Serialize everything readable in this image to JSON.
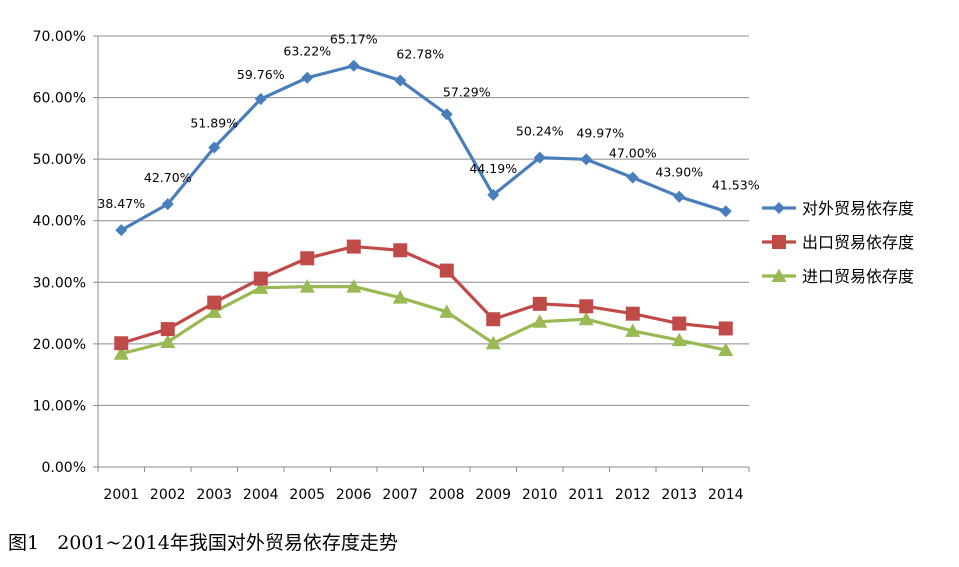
{
  "chart_data": {
    "type": "line",
    "title": "",
    "xlabel": "",
    "ylabel": "",
    "ylim": [
      0,
      70
    ],
    "yticks": [
      "0.00%",
      "10.00%",
      "20.00%",
      "30.00%",
      "40.00%",
      "50.00%",
      "60.00%",
      "70.00%"
    ],
    "categories": [
      "2001",
      "2002",
      "2003",
      "2004",
      "2005",
      "2006",
      "2007",
      "2008",
      "2009",
      "2010",
      "2011",
      "2012",
      "2013",
      "2014"
    ],
    "legend_position": "right",
    "grid": true,
    "series": [
      {
        "name": "对外贸易依存度",
        "color": "#4a7ebb",
        "marker": "diamond",
        "values": [
          38.47,
          42.7,
          51.89,
          59.76,
          63.22,
          65.17,
          62.78,
          57.29,
          44.19,
          50.24,
          49.97,
          47.0,
          43.9,
          41.53
        ],
        "labels": [
          "38.47%",
          "42.70%",
          "51.89%",
          "59.76%",
          "63.22%",
          "65.17%",
          "62.78%",
          "57.29%",
          "44.19%",
          "50.24%",
          "49.97%",
          "47.00%",
          "43.90%",
          "41.53%"
        ]
      },
      {
        "name": "出口贸易依存度",
        "color": "#be4b48",
        "marker": "square",
        "values": [
          20.1,
          22.4,
          26.7,
          30.6,
          33.9,
          35.8,
          35.2,
          31.9,
          24.0,
          26.5,
          26.1,
          24.9,
          23.3,
          22.5
        ],
        "labels": []
      },
      {
        "name": "进口贸易依存度",
        "color": "#98b954",
        "marker": "triangle",
        "values": [
          18.4,
          20.3,
          25.2,
          29.1,
          29.3,
          29.3,
          27.5,
          25.2,
          20.1,
          23.6,
          24.0,
          22.1,
          20.6,
          19.0
        ],
        "labels": []
      }
    ]
  },
  "caption": "图1   2001~2014年我国对外贸易依存度走势"
}
